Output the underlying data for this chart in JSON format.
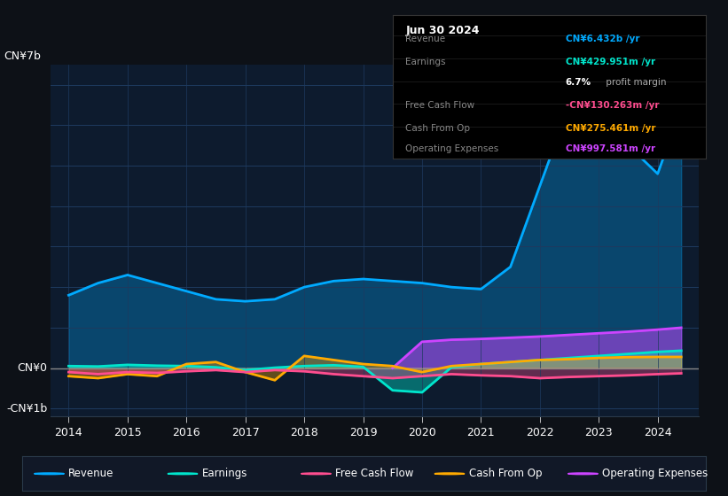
{
  "background_color": "#0d1117",
  "chart_bg_color": "#0d1b2e",
  "title": "Jun 30 2024",
  "ylabel_top": "CN¥7b",
  "ylabel_bottom": "-CN¥1b",
  "ylabel_zero": "CN¥0",
  "ylim_min": -1200000000,
  "ylim_max": 7500000000,
  "rev_x": [
    2014,
    2014.5,
    2015,
    2015.5,
    2016,
    2016.5,
    2017,
    2017.5,
    2018,
    2018.5,
    2019,
    2019.5,
    2020,
    2020.5,
    2021,
    2021.5,
    2022,
    2022.5,
    2023,
    2023.5,
    2024,
    2024.4
  ],
  "rev_y": [
    1800000000,
    2100000000,
    2300000000,
    2100000000,
    1900000000,
    1700000000,
    1650000000,
    1700000000,
    2000000000,
    2150000000,
    2200000000,
    2150000000,
    2100000000,
    2000000000,
    1950000000,
    2500000000,
    4500000000,
    6500000000,
    6300000000,
    5500000000,
    4800000000,
    6432000000
  ],
  "earn_x": [
    2014,
    2014.5,
    2015,
    2015.5,
    2016,
    2016.5,
    2017,
    2017.5,
    2018,
    2018.5,
    2019,
    2019.5,
    2020,
    2020.5,
    2021,
    2021.5,
    2022,
    2022.5,
    2023,
    2023.5,
    2024,
    2024.4
  ],
  "earn_y": [
    50000000,
    40000000,
    80000000,
    60000000,
    50000000,
    20000000,
    -50000000,
    10000000,
    50000000,
    70000000,
    30000000,
    -550000000,
    -600000000,
    20000000,
    100000000,
    150000000,
    200000000,
    250000000,
    300000000,
    350000000,
    400000000,
    429951000
  ],
  "fcf_x": [
    2014,
    2014.5,
    2015,
    2015.5,
    2016,
    2016.5,
    2017,
    2017.5,
    2018,
    2018.5,
    2019,
    2019.5,
    2020,
    2020.5,
    2021,
    2021.5,
    2022,
    2022.5,
    2023,
    2023.5,
    2024,
    2024.4
  ],
  "fcf_y": [
    -100000000,
    -150000000,
    -100000000,
    -120000000,
    -80000000,
    -50000000,
    -100000000,
    -50000000,
    -80000000,
    -150000000,
    -200000000,
    -250000000,
    -200000000,
    -150000000,
    -180000000,
    -200000000,
    -250000000,
    -220000000,
    -200000000,
    -180000000,
    -150000000,
    -130263000
  ],
  "cfo_x": [
    2014,
    2014.5,
    2015,
    2015.5,
    2016,
    2016.5,
    2017,
    2017.5,
    2018,
    2018.5,
    2019,
    2019.5,
    2020,
    2020.5,
    2021,
    2021.5,
    2022,
    2022.5,
    2023,
    2023.5,
    2024,
    2024.4
  ],
  "cfo_y": [
    -200000000,
    -250000000,
    -150000000,
    -200000000,
    100000000,
    150000000,
    -100000000,
    -300000000,
    300000000,
    200000000,
    100000000,
    50000000,
    -100000000,
    50000000,
    100000000,
    150000000,
    200000000,
    220000000,
    250000000,
    270000000,
    275461000,
    275461000
  ],
  "opex_x": [
    2019.5,
    2020,
    2020.5,
    2021,
    2021.5,
    2022,
    2022.5,
    2023,
    2023.5,
    2024,
    2024.4
  ],
  "opex_y": [
    0,
    650000000,
    700000000,
    720000000,
    750000000,
    780000000,
    820000000,
    860000000,
    900000000,
    950000000,
    997581000
  ],
  "revenue_color": "#00aaff",
  "earnings_color": "#00e5cc",
  "free_cash_flow_color": "#ff4d8f",
  "cash_from_op_color": "#ffaa00",
  "operating_expenses_color": "#cc44ff",
  "grid_color": "#1e3a5f",
  "zero_line_color": "#888888",
  "tooltip_bg": "#000000",
  "tooltip_border": "#333333",
  "legend_bg": "#111827",
  "legend_border": "#2a3a4a"
}
